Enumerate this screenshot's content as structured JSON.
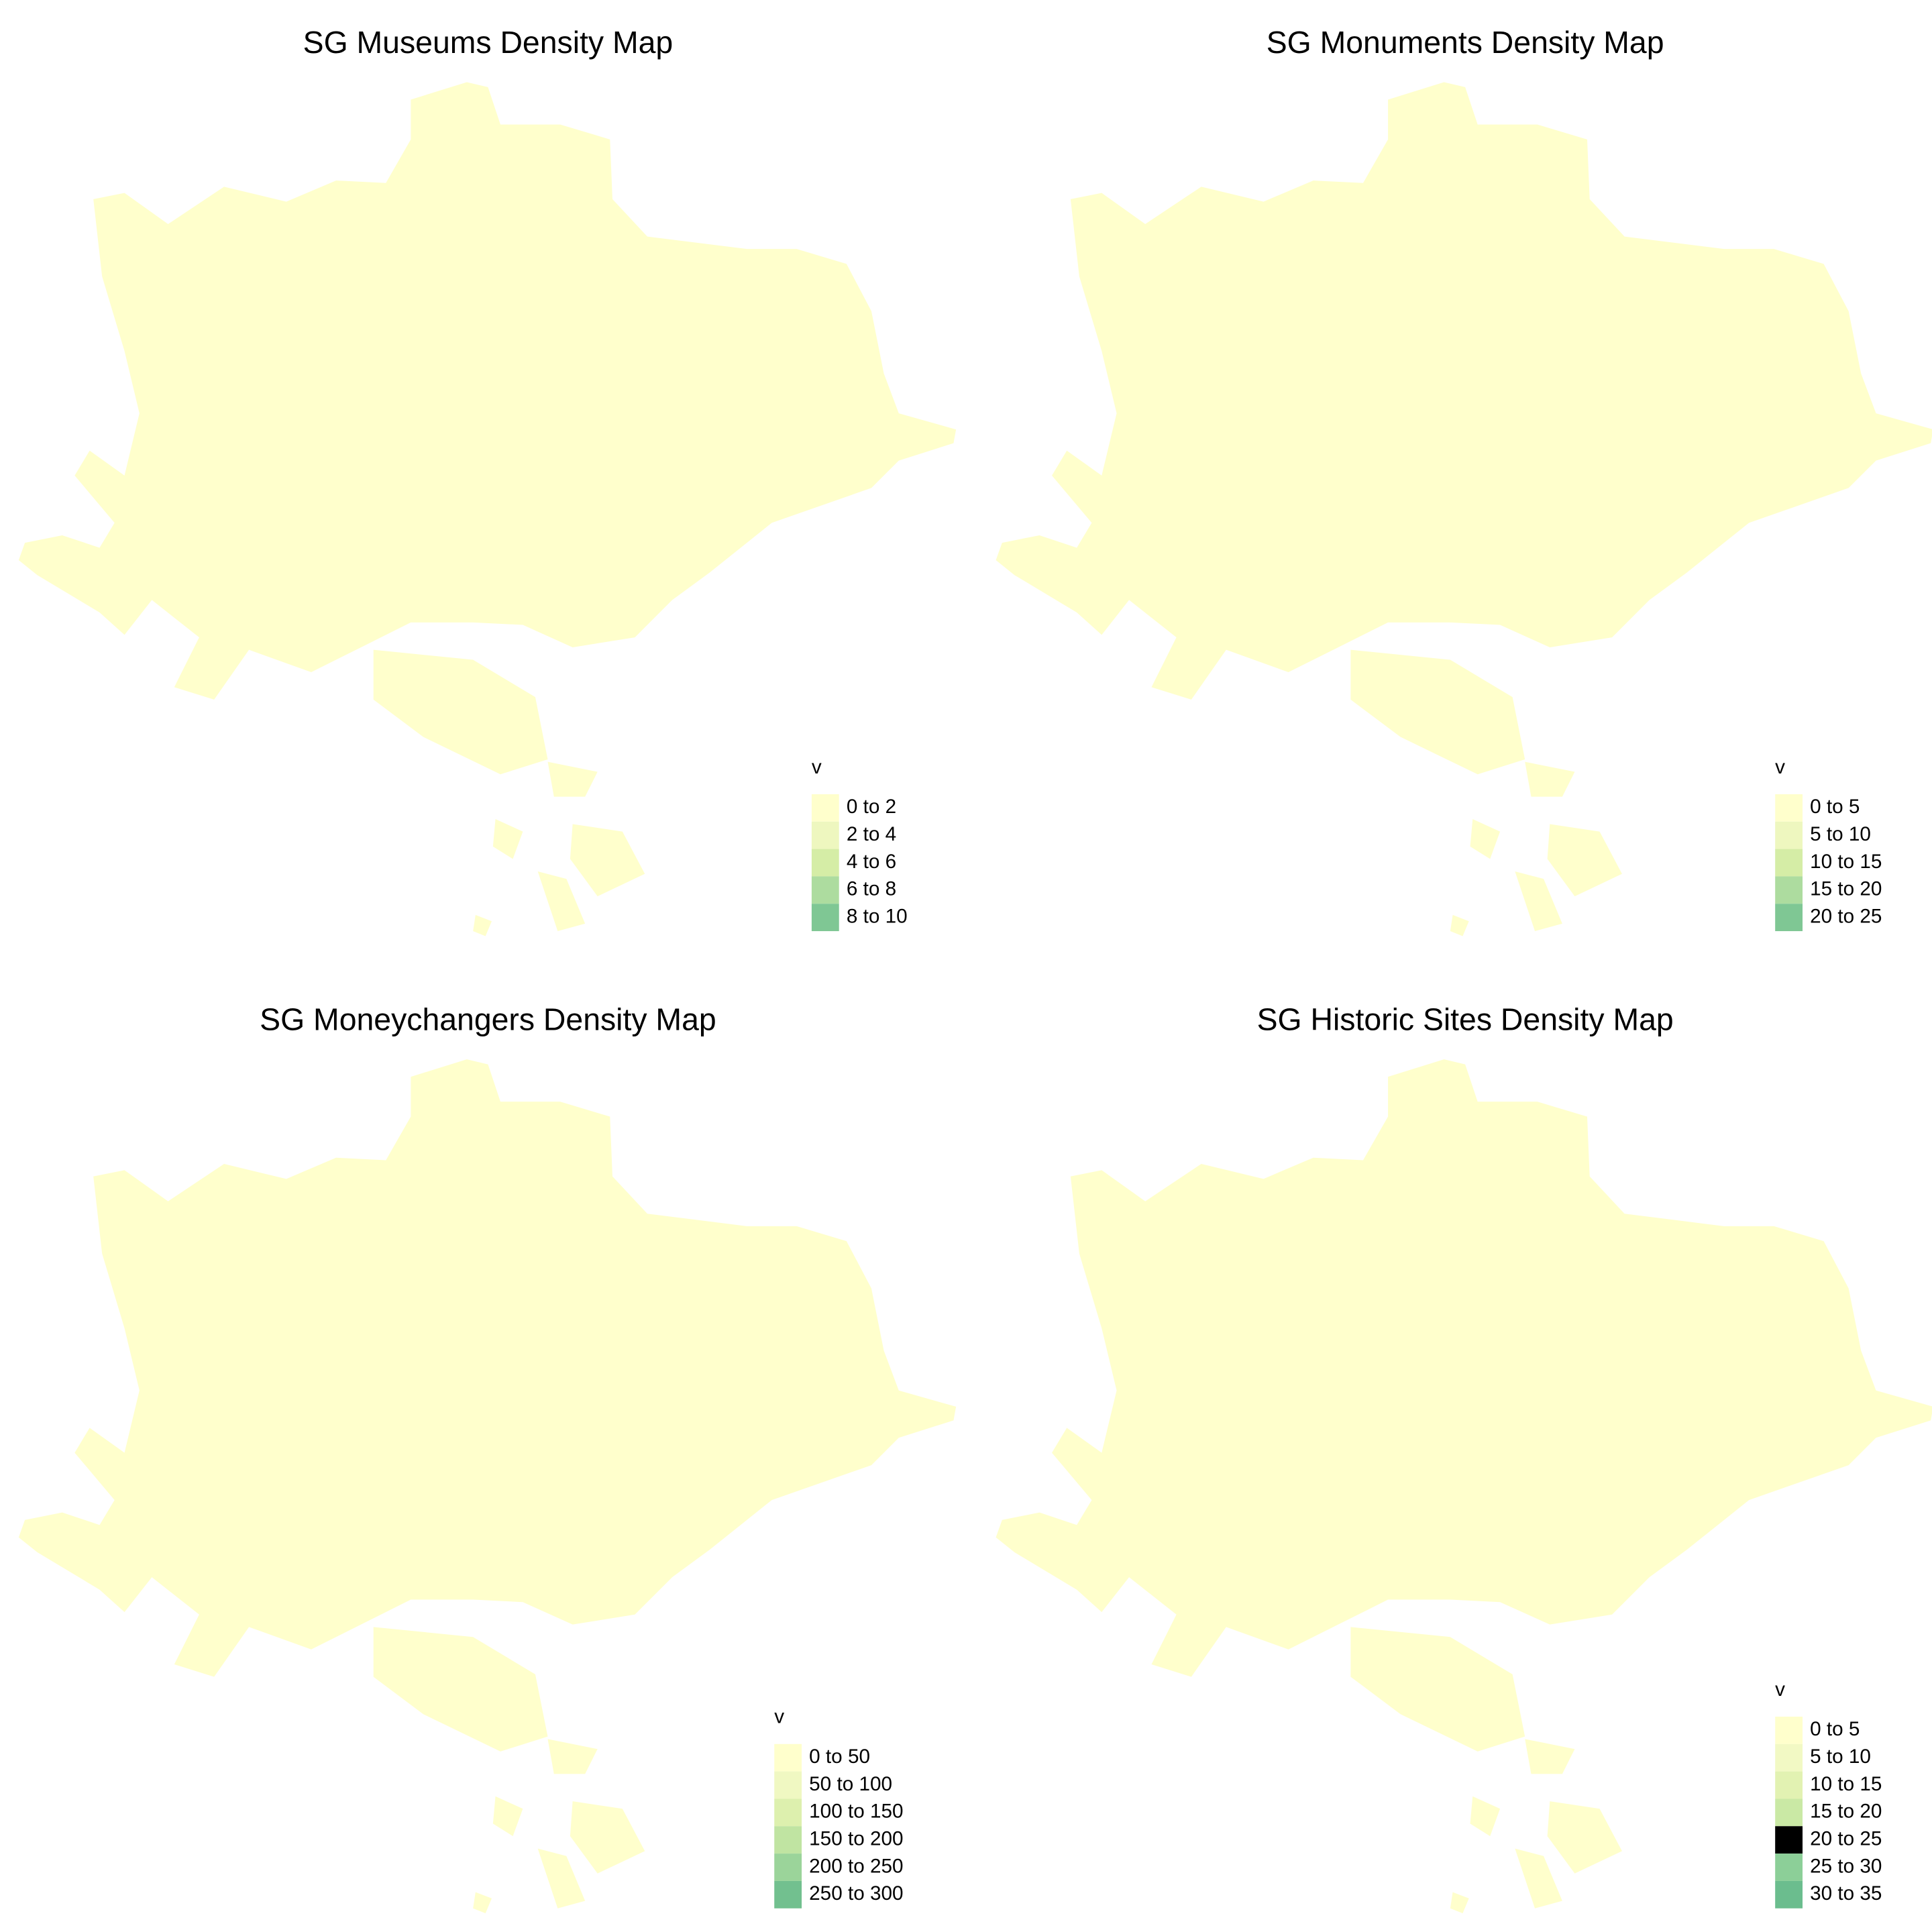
{
  "maps": [
    {
      "title": "SG Museums Density Map",
      "legend": {
        "title": "v",
        "items": [
          {
            "label": "0 to 2",
            "color": "#ffffcc"
          },
          {
            "label": "2 to 4",
            "color": "#eef7bf"
          },
          {
            "label": "4 to 6",
            "color": "#d5eda6"
          },
          {
            "label": "6 to 8",
            "color": "#addc9f"
          },
          {
            "label": "8 to 10",
            "color": "#7fc794"
          }
        ]
      }
    },
    {
      "title": "SG Monuments Density Map",
      "legend": {
        "title": "v",
        "items": [
          {
            "label": "0 to 5",
            "color": "#ffffcc"
          },
          {
            "label": "5 to 10",
            "color": "#eef7bf"
          },
          {
            "label": "10 to 15",
            "color": "#d5eda6"
          },
          {
            "label": "15 to 20",
            "color": "#addc9f"
          },
          {
            "label": "20 to 25",
            "color": "#7fc794"
          }
        ]
      }
    },
    {
      "title": "SG Moneychangers Density Map",
      "legend": {
        "title": "v",
        "items": [
          {
            "label": "0 to 50",
            "color": "#ffffcc"
          },
          {
            "label": "50 to 100",
            "color": "#f0f8c2"
          },
          {
            "label": "100 to 150",
            "color": "#ddf0ae"
          },
          {
            "label": "150 to 200",
            "color": "#c0e4a2"
          },
          {
            "label": "200 to 250",
            "color": "#9bd49a"
          },
          {
            "label": "250 to 300",
            "color": "#72c08f"
          }
        ]
      }
    },
    {
      "title": "SG Historic Sites Density Map",
      "legend": {
        "title": "v",
        "items": [
          {
            "label": "0 to 5",
            "color": "#ffffcc"
          },
          {
            "label": "5 to 10",
            "color": "#f2f9c4"
          },
          {
            "label": "10 to 15",
            "color": "#e2f2b2"
          },
          {
            "label": "15 to 20",
            "color": "#cae9a5"
          },
          {
            "label": "20 to 25",
            "color": "#add c9f"
          },
          {
            "label": "25 to 30",
            "color": "#8ccf98"
          },
          {
            "label": "30 to 35",
            "color": "#6bbd8e"
          }
        ]
      }
    }
  ]
}
